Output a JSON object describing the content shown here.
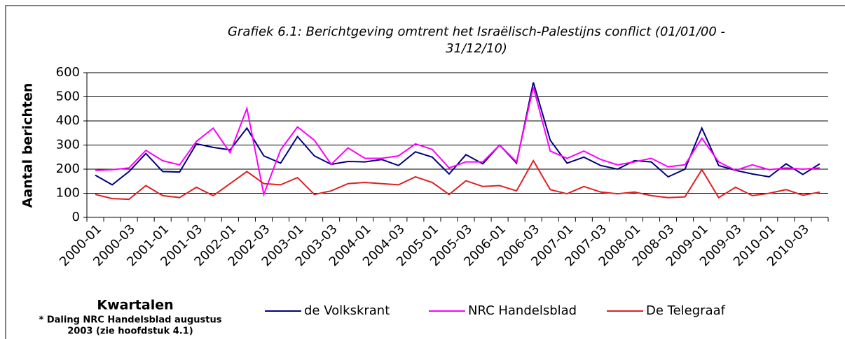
{
  "chart_data": {
    "type": "line",
    "title": [
      "Grafiek 6.1: Berichtgeving omtrent het Israëlisch-Palestijns conflict (01/01/00 -",
      "31/12/10)"
    ],
    "y_label": "Aantal berichten",
    "x_label": "Kwartalen",
    "note": [
      "* Daling NRC Handelsblad augustus",
      "2003  (zie hoofdstuk 4.1)"
    ],
    "categories": [
      "2000-01",
      null,
      "2000-03",
      null,
      "2001-01",
      null,
      "2001-03",
      null,
      "2002-01",
      null,
      "2002-03",
      null,
      "2003-01",
      null,
      "2003-03",
      null,
      "2004-01",
      null,
      "2004-03",
      null,
      "2005-01",
      null,
      "2005-03",
      null,
      "2006-01",
      null,
      "2006-03",
      null,
      "2007-01",
      null,
      "2007-03",
      null,
      "2008-01",
      null,
      "2008-03",
      null,
      "2009-01",
      null,
      "2009-03",
      null,
      "2010-01",
      null,
      "2010-03",
      null
    ],
    "series": [
      {
        "name": "de Volkskrant",
        "color": "#000080",
        "values": [
          175,
          135,
          190,
          265,
          190,
          188,
          305,
          290,
          280,
          370,
          255,
          225,
          335,
          255,
          220,
          232,
          230,
          240,
          215,
          272,
          250,
          180,
          260,
          222,
          300,
          225,
          560,
          320,
          225,
          250,
          215,
          200,
          235,
          230,
          168,
          200,
          370,
          215,
          195,
          180,
          168,
          222,
          178,
          222
        ]
      },
      {
        "name": "NRC Handelsblad",
        "color": "#ff00ff",
        "values": [
          195,
          198,
          205,
          278,
          235,
          218,
          315,
          370,
          268,
          452,
          95,
          280,
          375,
          320,
          220,
          288,
          245,
          245,
          255,
          305,
          282,
          205,
          230,
          230,
          300,
          230,
          540,
          275,
          245,
          275,
          240,
          218,
          230,
          245,
          210,
          218,
          328,
          230,
          195,
          218,
          198,
          205,
          200,
          205
        ]
      },
      {
        "name": "De Telegraaf",
        "color": "#e02020",
        "values": [
          95,
          78,
          75,
          132,
          90,
          82,
          125,
          90,
          140,
          190,
          140,
          135,
          165,
          95,
          110,
          140,
          145,
          140,
          135,
          168,
          145,
          95,
          152,
          128,
          132,
          110,
          235,
          115,
          98,
          128,
          105,
          98,
          105,
          90,
          82,
          85,
          198,
          82,
          125,
          90,
          100,
          115,
          92,
          105
        ]
      }
    ],
    "ylim": [
      0,
      600
    ],
    "yticks": [
      0,
      100,
      200,
      300,
      400,
      500,
      600
    ],
    "grid": true
  }
}
